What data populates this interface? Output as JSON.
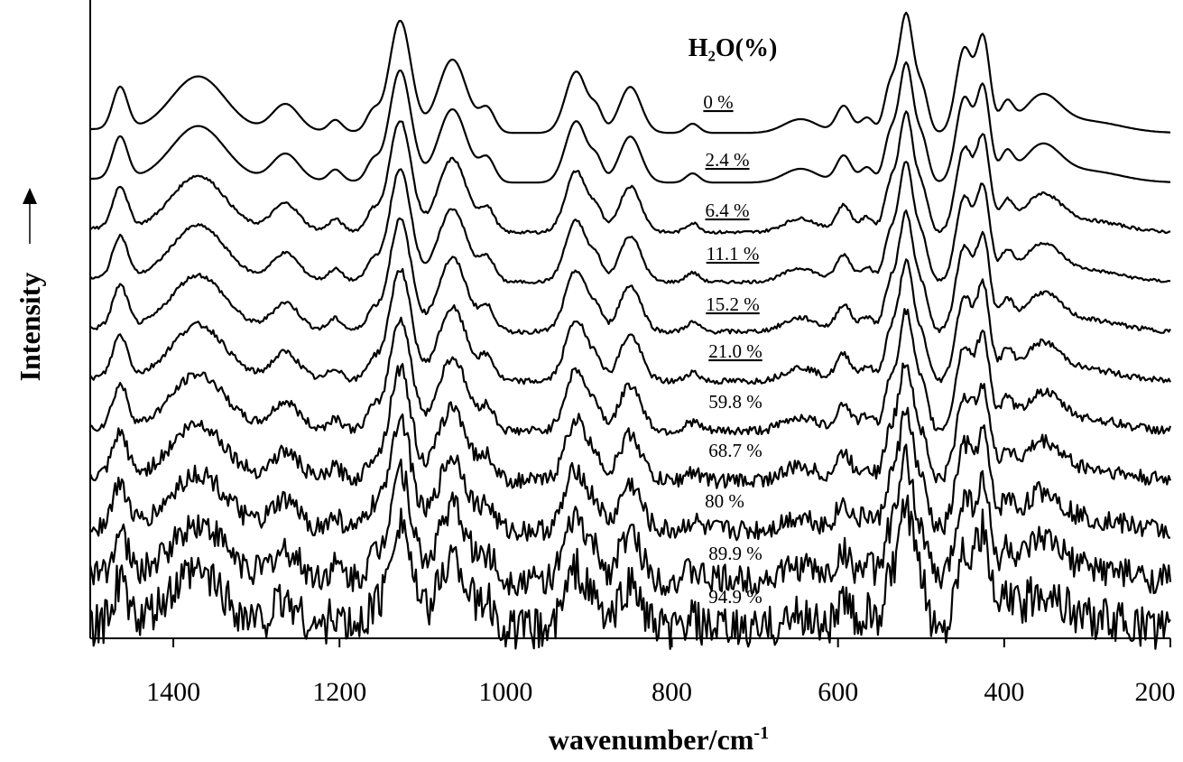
{
  "chart_data": {
    "type": "line",
    "xlabel": {
      "main": "wavenumber/cm",
      "sup": "-1"
    },
    "ylabel": "Intensity",
    "xlim": [
      1500,
      200
    ],
    "x_reversed": true,
    "x_ticks": [
      "1400",
      "1200",
      "1000",
      "800",
      "600",
      "400",
      "200"
    ],
    "y_ticks": [],
    "grid": false,
    "legend": {
      "title": "H₂O(%)",
      "placement": "top-right"
    },
    "peaks": [
      {
        "x": 1464,
        "h": 0.55,
        "w": 9
      },
      {
        "x": 1370,
        "h": 0.7,
        "w": 32
      },
      {
        "x": 1265,
        "h": 0.35,
        "w": 16
      },
      {
        "x": 1205,
        "h": 0.15,
        "w": 8
      },
      {
        "x": 1160,
        "h": 0.25,
        "w": 8
      },
      {
        "x": 1127,
        "h": 1.45,
        "w": 13
      },
      {
        "x": 1064,
        "h": 0.95,
        "w": 17
      },
      {
        "x": 1022,
        "h": 0.3,
        "w": 9
      },
      {
        "x": 915,
        "h": 0.8,
        "w": 13
      },
      {
        "x": 890,
        "h": 0.25,
        "w": 7
      },
      {
        "x": 850,
        "h": 0.6,
        "w": 13
      },
      {
        "x": 775,
        "h": 0.12,
        "w": 8
      },
      {
        "x": 645,
        "h": 0.18,
        "w": 20
      },
      {
        "x": 593,
        "h": 0.35,
        "w": 9
      },
      {
        "x": 565,
        "h": 0.2,
        "w": 8
      },
      {
        "x": 538,
        "h": 0.55,
        "w": 7
      },
      {
        "x": 518,
        "h": 1.55,
        "w": 9
      },
      {
        "x": 498,
        "h": 0.5,
        "w": 7
      },
      {
        "x": 448,
        "h": 1.1,
        "w": 10
      },
      {
        "x": 425,
        "h": 1.2,
        "w": 8
      },
      {
        "x": 397,
        "h": 0.35,
        "w": 8
      },
      {
        "x": 355,
        "h": 0.45,
        "w": 22
      },
      {
        "x": 300,
        "h": 0.15,
        "w": 40
      }
    ],
    "series": [
      {
        "name": "0 %",
        "underline": true,
        "offset": 0,
        "noise": 0.0
      },
      {
        "name": "2.4 %",
        "underline": true,
        "offset": 1,
        "noise": 0.0
      },
      {
        "name": "6.4 %",
        "underline": true,
        "offset": 2,
        "noise": 0.01
      },
      {
        "name": "11.1 %",
        "underline": true,
        "offset": 3,
        "noise": 0.01
      },
      {
        "name": "15.2 %",
        "underline": true,
        "offset": 4,
        "noise": 0.015
      },
      {
        "name": "21.0 %",
        "underline": true,
        "offset": 5,
        "noise": 0.02
      },
      {
        "name": "59.8 %",
        "underline": false,
        "offset": 6,
        "noise": 0.03
      },
      {
        "name": "68.7 %",
        "underline": false,
        "offset": 7,
        "noise": 0.05
      },
      {
        "name": "80 %",
        "underline": false,
        "offset": 8,
        "noise": 0.07
      },
      {
        "name": "89.9 %",
        "underline": false,
        "offset": 9,
        "noise": 0.1
      },
      {
        "name": "94.9 %",
        "underline": false,
        "offset": 10,
        "noise": 0.14
      }
    ]
  }
}
